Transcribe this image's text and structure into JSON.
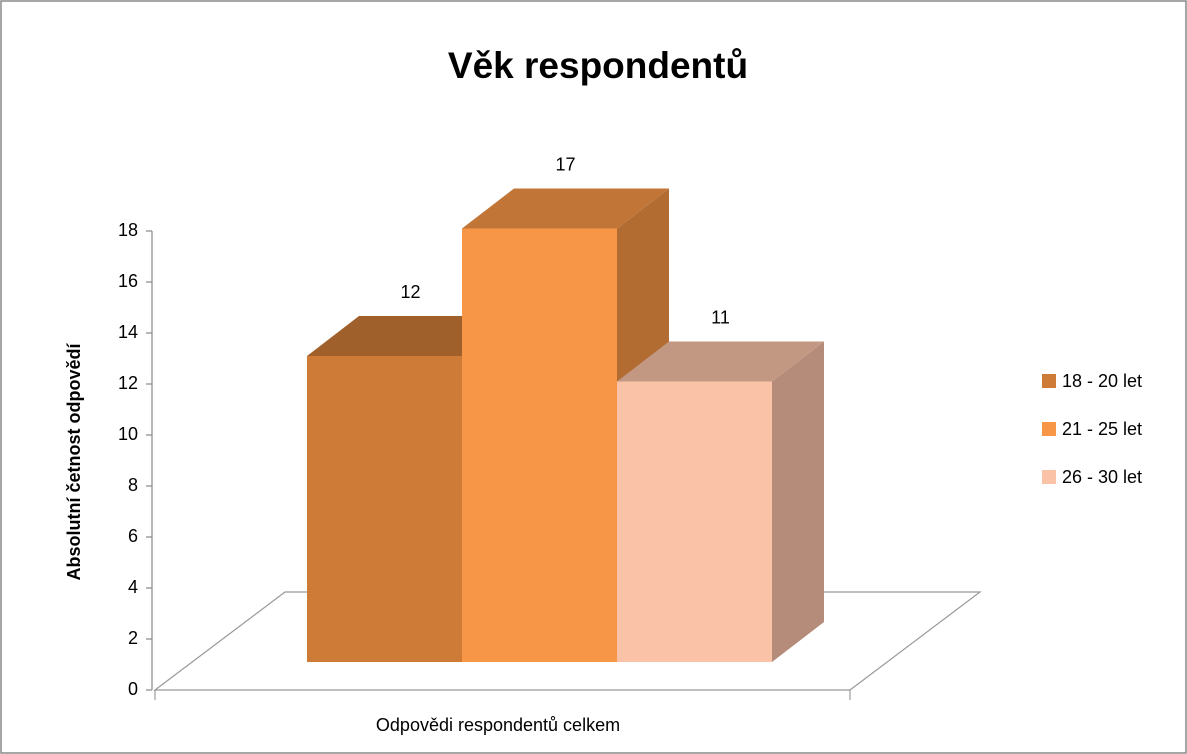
{
  "chart_data": {
    "type": "bar3d",
    "title": "Věk respondentů",
    "y_label": "Absolutní četnost odpovědí",
    "categories": [
      "Odpovědi respondentů celkem"
    ],
    "series": [
      {
        "name": "18 - 20 let",
        "color": "#CD7B37",
        "values": [
          12
        ]
      },
      {
        "name": "21 - 25 let",
        "color": "#F79646",
        "values": [
          17
        ]
      },
      {
        "name": "26 - 30 let",
        "color": "#FAC3A8",
        "values": [
          11
        ]
      }
    ],
    "ylim": [
      0,
      18
    ],
    "yticks": [
      0,
      2,
      4,
      6,
      8,
      10,
      12,
      14,
      16,
      18
    ],
    "legend": "right"
  }
}
